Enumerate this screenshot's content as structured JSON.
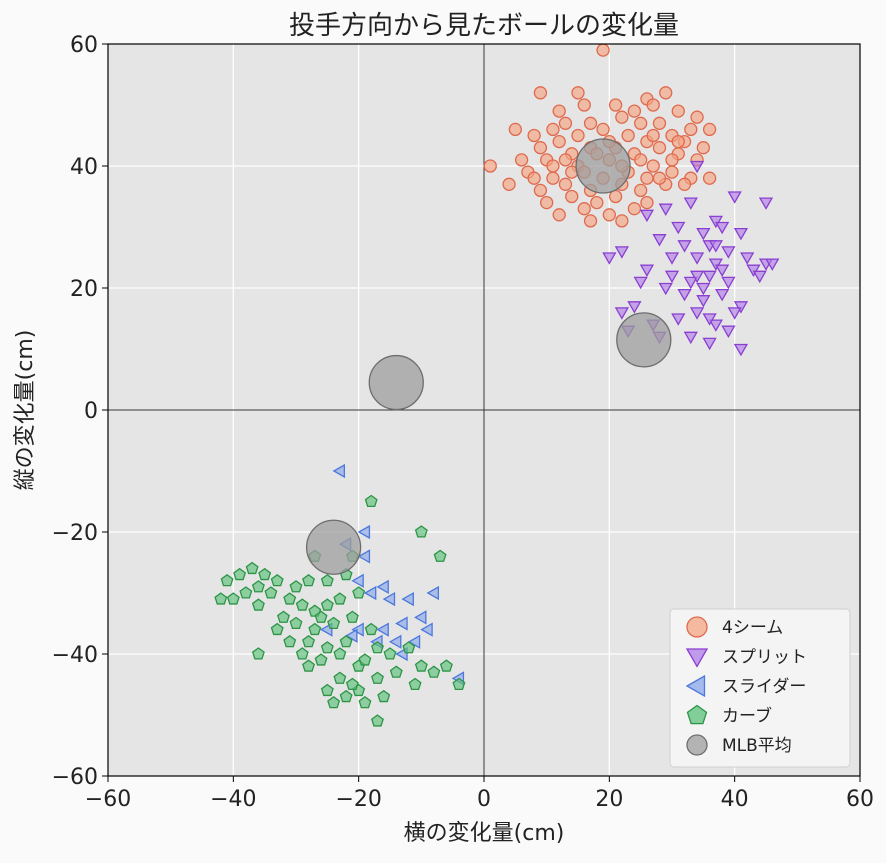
{
  "chart_data": {
    "type": "scatter",
    "title": "投手方向から見たボールの変化量",
    "xlabel": "横の変化量(cm)",
    "ylabel": "縦の変化量(cm)",
    "xlim": [
      -60,
      60
    ],
    "ylim": [
      -60,
      60
    ],
    "xticks": [
      "−60",
      "−40",
      "−20",
      "0",
      "20",
      "40",
      "60"
    ],
    "yticks": [
      "−60",
      "−40",
      "−20",
      "0",
      "20",
      "40",
      "60"
    ],
    "grid": true,
    "legend_position": "lower-right",
    "series": [
      {
        "name": "4シーム",
        "marker": "circle",
        "color": "#f4a582",
        "edge": "#e0694d",
        "points": [
          [
            19,
            59
          ],
          [
            9,
            52
          ],
          [
            15,
            52
          ],
          [
            26,
            51
          ],
          [
            29,
            52
          ],
          [
            12,
            49
          ],
          [
            16,
            50
          ],
          [
            21,
            50
          ],
          [
            24,
            49
          ],
          [
            27,
            50
          ],
          [
            31,
            49
          ],
          [
            34,
            48
          ],
          [
            5,
            46
          ],
          [
            8,
            45
          ],
          [
            11,
            46
          ],
          [
            13,
            47
          ],
          [
            17,
            47
          ],
          [
            22,
            48
          ],
          [
            25,
            47
          ],
          [
            28,
            47
          ],
          [
            33,
            46
          ],
          [
            36,
            46
          ],
          [
            9,
            43
          ],
          [
            12,
            44
          ],
          [
            15,
            45
          ],
          [
            19,
            46
          ],
          [
            23,
            45
          ],
          [
            26,
            44
          ],
          [
            30,
            45
          ],
          [
            32,
            44
          ],
          [
            35,
            43
          ],
          [
            6,
            41
          ],
          [
            10,
            41
          ],
          [
            14,
            42
          ],
          [
            17,
            43
          ],
          [
            21,
            43
          ],
          [
            24,
            42
          ],
          [
            28,
            43
          ],
          [
            31,
            42
          ],
          [
            34,
            41
          ],
          [
            1,
            40
          ],
          [
            7,
            39
          ],
          [
            11,
            38
          ],
          [
            15,
            40
          ],
          [
            20,
            41
          ],
          [
            23,
            39
          ],
          [
            27,
            40
          ],
          [
            30,
            39
          ],
          [
            33,
            38
          ],
          [
            36,
            38
          ],
          [
            4,
            37
          ],
          [
            9,
            36
          ],
          [
            13,
            37
          ],
          [
            17,
            36
          ],
          [
            22,
            37
          ],
          [
            25,
            36
          ],
          [
            29,
            37
          ],
          [
            32,
            37
          ],
          [
            10,
            34
          ],
          [
            14,
            35
          ],
          [
            18,
            34
          ],
          [
            21,
            35
          ],
          [
            26,
            34
          ],
          [
            12,
            32
          ],
          [
            16,
            33
          ],
          [
            20,
            32
          ],
          [
            24,
            33
          ],
          [
            17,
            31
          ],
          [
            22,
            31
          ],
          [
            19,
            38
          ],
          [
            16,
            39
          ],
          [
            25,
            41
          ],
          [
            28,
            38
          ],
          [
            30,
            41
          ],
          [
            13,
            41
          ],
          [
            26,
            38
          ],
          [
            22,
            40
          ],
          [
            18,
            42
          ],
          [
            31,
            44
          ],
          [
            27,
            45
          ],
          [
            20,
            44
          ],
          [
            14,
            39
          ],
          [
            8,
            38
          ],
          [
            11,
            40
          ]
        ]
      },
      {
        "name": "スプリット",
        "marker": "triangle-down",
        "color": "#b07ee8",
        "edge": "#8a3fd1",
        "points": [
          [
            34,
            40
          ],
          [
            40,
            35
          ],
          [
            45,
            34
          ],
          [
            26,
            32
          ],
          [
            29,
            33
          ],
          [
            33,
            34
          ],
          [
            37,
            31
          ],
          [
            31,
            30
          ],
          [
            35,
            29
          ],
          [
            38,
            30
          ],
          [
            41,
            29
          ],
          [
            28,
            28
          ],
          [
            32,
            27
          ],
          [
            36,
            27
          ],
          [
            39,
            26
          ],
          [
            34,
            25
          ],
          [
            37,
            24
          ],
          [
            42,
            25
          ],
          [
            45,
            24
          ],
          [
            20,
            25
          ],
          [
            22,
            26
          ],
          [
            26,
            23
          ],
          [
            30,
            22
          ],
          [
            33,
            21
          ],
          [
            36,
            22
          ],
          [
            39,
            21
          ],
          [
            43,
            23
          ],
          [
            46,
            24
          ],
          [
            25,
            21
          ],
          [
            29,
            20
          ],
          [
            32,
            19
          ],
          [
            35,
            18
          ],
          [
            38,
            19
          ],
          [
            41,
            17
          ],
          [
            44,
            22
          ],
          [
            22,
            16
          ],
          [
            24,
            17
          ],
          [
            27,
            14
          ],
          [
            31,
            15
          ],
          [
            34,
            16
          ],
          [
            37,
            14
          ],
          [
            40,
            16
          ],
          [
            33,
            12
          ],
          [
            36,
            11
          ],
          [
            39,
            13
          ],
          [
            41,
            10
          ],
          [
            23,
            13
          ],
          [
            28,
            12
          ],
          [
            35,
            20
          ],
          [
            37,
            27
          ],
          [
            34,
            22
          ],
          [
            30,
            25
          ],
          [
            38,
            23
          ],
          [
            36,
            15
          ]
        ]
      },
      {
        "name": "スライダー",
        "marker": "triangle-left",
        "color": "#8aa6ea",
        "edge": "#4d79dc",
        "points": [
          [
            -23,
            -10
          ],
          [
            -19,
            -20
          ],
          [
            -22,
            -22
          ],
          [
            -19,
            -24
          ],
          [
            -20,
            -28
          ],
          [
            -18,
            -30
          ],
          [
            -16,
            -29
          ],
          [
            -15,
            -31
          ],
          [
            -12,
            -31
          ],
          [
            -8,
            -30
          ],
          [
            -13,
            -35
          ],
          [
            -10,
            -34
          ],
          [
            -16,
            -36
          ],
          [
            -20,
            -36
          ],
          [
            -14,
            -38
          ],
          [
            -11,
            -38
          ],
          [
            -17,
            -38
          ],
          [
            -25,
            -36
          ],
          [
            -21,
            -37
          ],
          [
            -9,
            -36
          ],
          [
            -13,
            -40
          ],
          [
            -4,
            -44
          ]
        ]
      },
      {
        "name": "カーブ",
        "marker": "pentagon",
        "color": "#5cc27a",
        "edge": "#2d9446",
        "points": [
          [
            -18,
            -15
          ],
          [
            -10,
            -20
          ],
          [
            -7,
            -24
          ],
          [
            -21,
            -24
          ],
          [
            -27,
            -24
          ],
          [
            -25,
            -28
          ],
          [
            -22,
            -27
          ],
          [
            -28,
            -28
          ],
          [
            -30,
            -29
          ],
          [
            -33,
            -28
          ],
          [
            -35,
            -27
          ],
          [
            -37,
            -26
          ],
          [
            -39,
            -27
          ],
          [
            -41,
            -28
          ],
          [
            -36,
            -29
          ],
          [
            -34,
            -30
          ],
          [
            -31,
            -31
          ],
          [
            -29,
            -32
          ],
          [
            -27,
            -33
          ],
          [
            -25,
            -32
          ],
          [
            -23,
            -31
          ],
          [
            -20,
            -30
          ],
          [
            -38,
            -30
          ],
          [
            -40,
            -31
          ],
          [
            -42,
            -31
          ],
          [
            -36,
            -32
          ],
          [
            -32,
            -34
          ],
          [
            -30,
            -35
          ],
          [
            -27,
            -36
          ],
          [
            -24,
            -35
          ],
          [
            -21,
            -34
          ],
          [
            -18,
            -36
          ],
          [
            -22,
            -38
          ],
          [
            -25,
            -39
          ],
          [
            -28,
            -38
          ],
          [
            -31,
            -38
          ],
          [
            -29,
            -40
          ],
          [
            -26,
            -41
          ],
          [
            -23,
            -40
          ],
          [
            -20,
            -42
          ],
          [
            -17,
            -39
          ],
          [
            -15,
            -40
          ],
          [
            -12,
            -39
          ],
          [
            -10,
            -42
          ],
          [
            -8,
            -43
          ],
          [
            -6,
            -42
          ],
          [
            -14,
            -43
          ],
          [
            -11,
            -45
          ],
          [
            -17,
            -44
          ],
          [
            -20,
            -46
          ],
          [
            -23,
            -44
          ],
          [
            -25,
            -46
          ],
          [
            -22,
            -47
          ],
          [
            -19,
            -48
          ],
          [
            -16,
            -47
          ],
          [
            -24,
            -48
          ],
          [
            -17,
            -51
          ],
          [
            -4,
            -45
          ],
          [
            -36,
            -40
          ],
          [
            -26,
            -34
          ],
          [
            -33,
            -36
          ],
          [
            -19,
            -41
          ],
          [
            -28,
            -42
          ],
          [
            -21,
            -45
          ]
        ]
      },
      {
        "name": "MLB平均",
        "marker": "circle",
        "color": "#9e9e9e",
        "edge": "#6d6d6d",
        "large": true,
        "points": [
          [
            19,
            40
          ],
          [
            25.5,
            11.5
          ],
          [
            -14,
            4.5
          ],
          [
            -24,
            -22.5
          ]
        ]
      }
    ]
  }
}
